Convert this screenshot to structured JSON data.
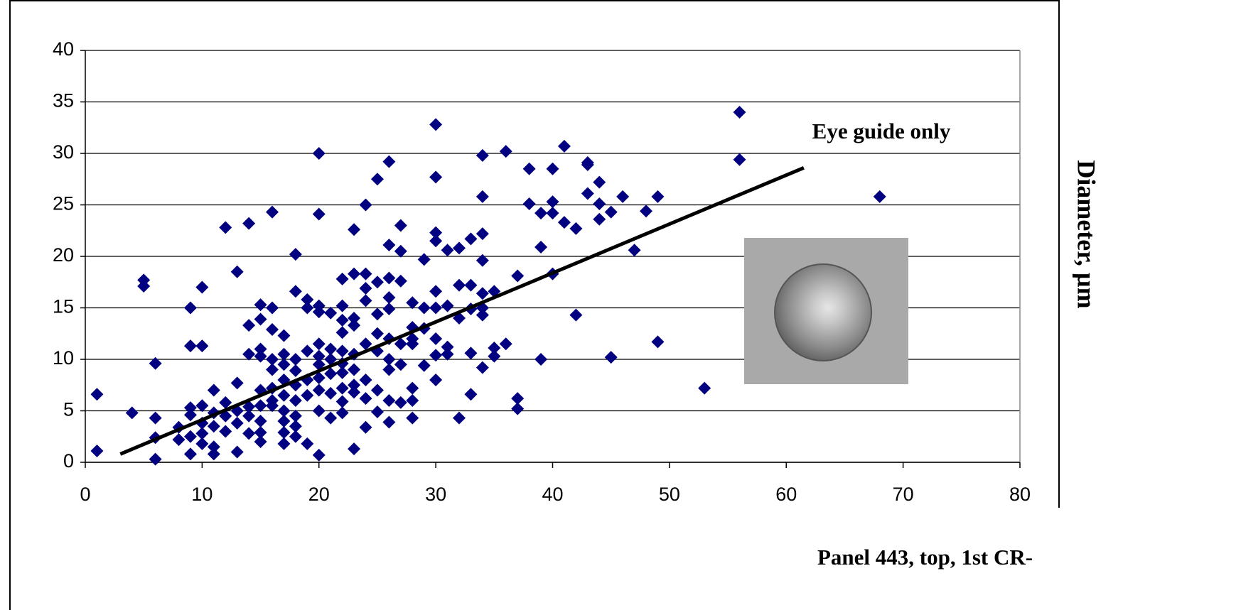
{
  "chart_data": {
    "type": "scatter",
    "annotation": "Eye guide only",
    "ylabel": "Diameter, µm",
    "xlabel": "Panel 443, top, 1st CR-",
    "xlim": [
      0,
      80
    ],
    "xticks": [
      0,
      10,
      20,
      30,
      40,
      50,
      60,
      70,
      80
    ],
    "ylim": [
      0,
      40
    ],
    "yticks": [
      0,
      5,
      10,
      15,
      20,
      25,
      30,
      35,
      40
    ],
    "grid": true,
    "series": [
      {
        "color": "#000080",
        "x": [
          1,
          1,
          4,
          5,
          5,
          6,
          6,
          6,
          6,
          8,
          8,
          9,
          9,
          9,
          9,
          9,
          9,
          10,
          10,
          10,
          10,
          10,
          10,
          11,
          11,
          11,
          11,
          11,
          12,
          12,
          12,
          12,
          13,
          13,
          13,
          13,
          13,
          14,
          14,
          14,
          14,
          14,
          14,
          15,
          15,
          15,
          15,
          15,
          15,
          15,
          15,
          15,
          16,
          16,
          16,
          16,
          16,
          16,
          16,
          16,
          17,
          17,
          17,
          17,
          17,
          17,
          17,
          17,
          17,
          18,
          18,
          18,
          18,
          18,
          18,
          18,
          18,
          18,
          19,
          19,
          19,
          19,
          19,
          19,
          20,
          20,
          20,
          20,
          20,
          20,
          20,
          20,
          20,
          20,
          20,
          21,
          21,
          21,
          21,
          21,
          21,
          22,
          22,
          22,
          22,
          22,
          22,
          22,
          22,
          22,
          22,
          23,
          23,
          23,
          23,
          23,
          23,
          23,
          23,
          23,
          24,
          24,
          24,
          24,
          24,
          24,
          24,
          24,
          25,
          25,
          25,
          25,
          25,
          25,
          25,
          26,
          26,
          26,
          26,
          26,
          26,
          26,
          26,
          26,
          26,
          27,
          27,
          27,
          27,
          27,
          27,
          28,
          28,
          28,
          28,
          28,
          28,
          28,
          29,
          29,
          29,
          29,
          30,
          30,
          30,
          30,
          30,
          30,
          30,
          30,
          30,
          31,
          31,
          31,
          31,
          32,
          32,
          32,
          32,
          33,
          33,
          33,
          33,
          33,
          34,
          34,
          34,
          34,
          34,
          34,
          34,
          34,
          35,
          35,
          35,
          36,
          36,
          37,
          37,
          37,
          38,
          38,
          39,
          39,
          39,
          40,
          40,
          40,
          40,
          41,
          41,
          42,
          42,
          43,
          43,
          43,
          44,
          44,
          44,
          45,
          45,
          46,
          47,
          48,
          49,
          49,
          53,
          56,
          56,
          68
        ],
        "values": [
          6.6,
          1.1,
          4.8,
          17.7,
          17.1,
          9.6,
          4.3,
          2.4,
          0.3,
          3.4,
          2.2,
          15,
          11.3,
          5.3,
          4.6,
          2.5,
          0.8,
          17,
          11.3,
          5.5,
          3.8,
          2.8,
          1.8,
          7,
          4.8,
          3.5,
          1.5,
          0.8,
          22.8,
          5.8,
          4.5,
          3,
          18.5,
          7.7,
          5,
          3.8,
          1,
          23.2,
          13.3,
          10.5,
          5.4,
          4.5,
          2.8,
          15.3,
          13.9,
          11,
          10.3,
          7,
          5.5,
          4,
          2.9,
          2,
          24.3,
          15,
          12.9,
          10,
          9,
          7.2,
          6,
          5.5,
          12.3,
          10.5,
          9.5,
          8,
          6.5,
          5,
          4,
          2.9,
          1.8,
          20.2,
          16.6,
          10,
          8.9,
          7.5,
          6,
          4.5,
          3.5,
          2.5,
          15.8,
          15,
          10.8,
          8,
          6.5,
          1.8,
          30,
          24.1,
          15.2,
          14.6,
          11.5,
          10.3,
          9.5,
          8.2,
          7,
          5,
          0.7,
          14.5,
          11,
          10,
          8.6,
          6.7,
          4.3,
          17.8,
          15.2,
          13.8,
          12.6,
          10.8,
          9.6,
          8.7,
          7.2,
          5.9,
          4.8,
          22.6,
          18.3,
          14,
          13.3,
          10.5,
          9,
          7.5,
          6.8,
          1.3,
          25,
          18.3,
          16.9,
          15.7,
          11.5,
          8,
          6.2,
          3.4,
          27.5,
          17.5,
          14.4,
          12.5,
          10.8,
          7,
          4.9,
          29.2,
          21.1,
          17.9,
          16,
          14.9,
          12,
          10,
          9,
          6,
          3.9,
          23,
          20.5,
          17.6,
          11.5,
          9.5,
          5.8,
          15.5,
          13.1,
          12,
          11.5,
          7.2,
          6,
          4.3,
          19.7,
          15,
          13,
          9.4,
          32.8,
          27.7,
          22.3,
          21.5,
          16.6,
          15,
          12,
          10.4,
          8,
          20.6,
          15.2,
          11.2,
          10.5,
          20.8,
          17.2,
          14,
          4.3,
          21.7,
          17.2,
          14.9,
          10.6,
          6.6,
          29.8,
          25.8,
          22.2,
          19.6,
          16.4,
          15,
          14.3,
          9.2,
          16.6,
          11.1,
          10.3,
          30.2,
          11.5,
          18.1,
          6.2,
          5.2,
          28.5,
          25.1,
          24.2,
          20.9,
          10,
          28.5,
          25.3,
          24.2,
          18.3,
          30.7,
          23.3,
          22.7,
          14.3,
          29.1,
          28.9,
          26.1,
          27.2,
          25.1,
          23.6,
          24.3,
          10.2,
          25.8,
          20.6,
          24.4,
          25.8,
          11.7,
          7.2,
          34,
          29.4,
          25.8
        ]
      },
      {
        "type": "line",
        "color": "#000000",
        "x": [
          3,
          61.5
        ],
        "values": [
          0.8,
          28.6
        ]
      }
    ]
  }
}
